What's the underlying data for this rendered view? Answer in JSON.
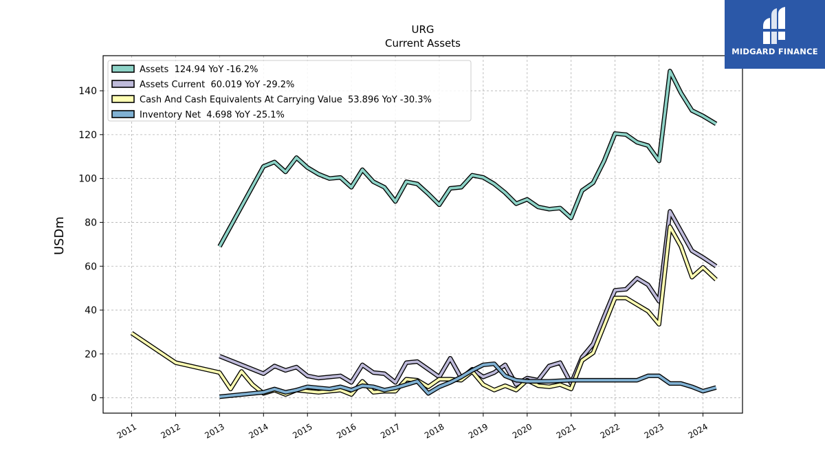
{
  "chart_data": {
    "type": "line",
    "title": "URG",
    "subtitle": "Current  Assets",
    "ylabel": "USDm",
    "xlabel": "",
    "xlim": [
      2010.35,
      2024.9
    ],
    "ylim": [
      -7,
      156
    ],
    "yticks": [
      0,
      20,
      40,
      60,
      80,
      100,
      120,
      140
    ],
    "xticks": [
      "2011",
      "2012",
      "2013",
      "2014",
      "2015",
      "2016",
      "2017",
      "2018",
      "2019",
      "2020",
      "2021",
      "2022",
      "2023",
      "2024"
    ],
    "grid": true,
    "legend_position": "top-left",
    "series": [
      {
        "name": "Assets  124.94 YoY -16.2%",
        "color": "#8dd3c7",
        "points": [
          [
            2013.0,
            69
          ],
          [
            2014.0,
            105.5
          ],
          [
            2014.25,
            107.5
          ],
          [
            2014.5,
            103
          ],
          [
            2014.75,
            109.5
          ],
          [
            2015.0,
            105
          ],
          [
            2015.25,
            102
          ],
          [
            2015.5,
            100
          ],
          [
            2015.75,
            100.5
          ],
          [
            2016.0,
            96
          ],
          [
            2016.25,
            104
          ],
          [
            2016.5,
            98.5
          ],
          [
            2016.75,
            96
          ],
          [
            2017.0,
            89.5
          ],
          [
            2017.25,
            98.5
          ],
          [
            2017.5,
            97.5
          ],
          [
            2017.75,
            93
          ],
          [
            2018.0,
            88
          ],
          [
            2018.25,
            95.5
          ],
          [
            2018.5,
            96
          ],
          [
            2018.75,
            101.5
          ],
          [
            2019.0,
            100.5
          ],
          [
            2019.25,
            97.5
          ],
          [
            2019.5,
            93.5
          ],
          [
            2019.75,
            88.5
          ],
          [
            2020.0,
            90.5
          ],
          [
            2020.25,
            87
          ],
          [
            2020.5,
            86
          ],
          [
            2020.75,
            86.5
          ],
          [
            2021.0,
            82
          ],
          [
            2021.25,
            94.5
          ],
          [
            2021.5,
            98
          ],
          [
            2021.75,
            108
          ],
          [
            2022.0,
            120.5
          ],
          [
            2022.25,
            120
          ],
          [
            2022.5,
            116.5
          ],
          [
            2022.75,
            115
          ],
          [
            2023.0,
            108
          ],
          [
            2023.25,
            149
          ],
          [
            2023.5,
            139
          ],
          [
            2023.75,
            131
          ],
          [
            2024.0,
            128.5
          ],
          [
            2024.3,
            124.9
          ]
        ]
      },
      {
        "name": "Assets Current  60.019 YoY -29.2%",
        "color": "#bebada",
        "points": [
          [
            2013.0,
            19
          ],
          [
            2013.5,
            15
          ],
          [
            2014.0,
            11
          ],
          [
            2014.25,
            14.5
          ],
          [
            2014.5,
            12.5
          ],
          [
            2014.75,
            14
          ],
          [
            2015.0,
            10
          ],
          [
            2015.25,
            9
          ],
          [
            2015.5,
            9.5
          ],
          [
            2015.75,
            10
          ],
          [
            2016.0,
            7
          ],
          [
            2016.25,
            15
          ],
          [
            2016.5,
            11.5
          ],
          [
            2016.75,
            11
          ],
          [
            2017.0,
            7
          ],
          [
            2017.25,
            16
          ],
          [
            2017.5,
            16.5
          ],
          [
            2017.75,
            13
          ],
          [
            2018.0,
            9.5
          ],
          [
            2018.25,
            18
          ],
          [
            2018.5,
            9
          ],
          [
            2018.75,
            13
          ],
          [
            2019.0,
            9.5
          ],
          [
            2019.25,
            11.5
          ],
          [
            2019.5,
            15
          ],
          [
            2019.75,
            6
          ],
          [
            2020.0,
            9
          ],
          [
            2020.25,
            8
          ],
          [
            2020.5,
            14.5
          ],
          [
            2020.75,
            16
          ],
          [
            2021.0,
            6.5
          ],
          [
            2021.25,
            18.5
          ],
          [
            2021.5,
            24.5
          ],
          [
            2021.75,
            37
          ],
          [
            2022.0,
            49
          ],
          [
            2022.25,
            49.5
          ],
          [
            2022.5,
            54.5
          ],
          [
            2022.75,
            51.5
          ],
          [
            2023.0,
            44
          ],
          [
            2023.25,
            85
          ],
          [
            2023.5,
            76
          ],
          [
            2023.75,
            67
          ],
          [
            2024.0,
            64
          ],
          [
            2024.3,
            60.0
          ]
        ]
      },
      {
        "name": "Cash And Cash Equivalents At Carrying Value  53.896 YoY -30.3%",
        "color": "#ffffb3",
        "points": [
          [
            2011.0,
            29.5
          ],
          [
            2012.0,
            16
          ],
          [
            2013.0,
            11.5
          ],
          [
            2013.25,
            4
          ],
          [
            2013.5,
            12
          ],
          [
            2013.75,
            6
          ],
          [
            2014.0,
            2
          ],
          [
            2014.25,
            3.5
          ],
          [
            2014.5,
            1.5
          ],
          [
            2014.75,
            3.5
          ],
          [
            2015.0,
            3
          ],
          [
            2015.25,
            2.5
          ],
          [
            2015.5,
            3
          ],
          [
            2015.75,
            3.5
          ],
          [
            2016.0,
            1.5
          ],
          [
            2016.25,
            7.5
          ],
          [
            2016.5,
            2.5
          ],
          [
            2016.75,
            3
          ],
          [
            2017.0,
            3
          ],
          [
            2017.25,
            8.5
          ],
          [
            2017.5,
            8
          ],
          [
            2017.75,
            5
          ],
          [
            2018.0,
            8.5
          ],
          [
            2018.25,
            8.5
          ],
          [
            2018.5,
            8
          ],
          [
            2018.75,
            12
          ],
          [
            2019.0,
            6
          ],
          [
            2019.25,
            3.5
          ],
          [
            2019.5,
            5.5
          ],
          [
            2019.75,
            3.5
          ],
          [
            2020.0,
            8
          ],
          [
            2020.25,
            5.5
          ],
          [
            2020.5,
            5
          ],
          [
            2020.75,
            6
          ],
          [
            2021.0,
            4
          ],
          [
            2021.25,
            17
          ],
          [
            2021.5,
            20.5
          ],
          [
            2021.75,
            33
          ],
          [
            2022.0,
            45.5
          ],
          [
            2022.25,
            45.5
          ],
          [
            2022.5,
            42.5
          ],
          [
            2022.75,
            39.5
          ],
          [
            2023.0,
            33.5
          ],
          [
            2023.25,
            78
          ],
          [
            2023.5,
            69
          ],
          [
            2023.75,
            55
          ],
          [
            2024.0,
            59.5
          ],
          [
            2024.3,
            53.9
          ]
        ]
      },
      {
        "name": "Inventory Net  4.698 YoY -25.1%",
        "color": "#80b1d3",
        "points": [
          [
            2013.0,
            0.5
          ],
          [
            2014.0,
            2.5
          ],
          [
            2014.25,
            4
          ],
          [
            2014.5,
            2.5
          ],
          [
            2014.75,
            3.5
          ],
          [
            2015.0,
            5
          ],
          [
            2015.25,
            4.5
          ],
          [
            2015.5,
            4
          ],
          [
            2015.75,
            5
          ],
          [
            2016.0,
            3.5
          ],
          [
            2016.25,
            5.5
          ],
          [
            2016.5,
            5
          ],
          [
            2016.75,
            3.5
          ],
          [
            2017.0,
            4.5
          ],
          [
            2017.25,
            6
          ],
          [
            2017.5,
            7.5
          ],
          [
            2017.75,
            2
          ],
          [
            2018.0,
            5
          ],
          [
            2018.25,
            7
          ],
          [
            2018.5,
            9.5
          ],
          [
            2018.75,
            12.5
          ],
          [
            2019.0,
            15
          ],
          [
            2019.25,
            15.5
          ],
          [
            2019.5,
            10
          ],
          [
            2019.75,
            8
          ],
          [
            2020.0,
            7.5
          ],
          [
            2020.5,
            7.5
          ],
          [
            2021.0,
            8
          ],
          [
            2021.5,
            8
          ],
          [
            2022.0,
            8
          ],
          [
            2022.5,
            8
          ],
          [
            2022.75,
            10
          ],
          [
            2023.0,
            10
          ],
          [
            2023.25,
            6.5
          ],
          [
            2023.5,
            6.5
          ],
          [
            2023.75,
            5
          ],
          [
            2024.0,
            3
          ],
          [
            2024.3,
            4.7
          ]
        ]
      }
    ]
  },
  "logo": {
    "text": "MIDGARD FINANCE"
  }
}
